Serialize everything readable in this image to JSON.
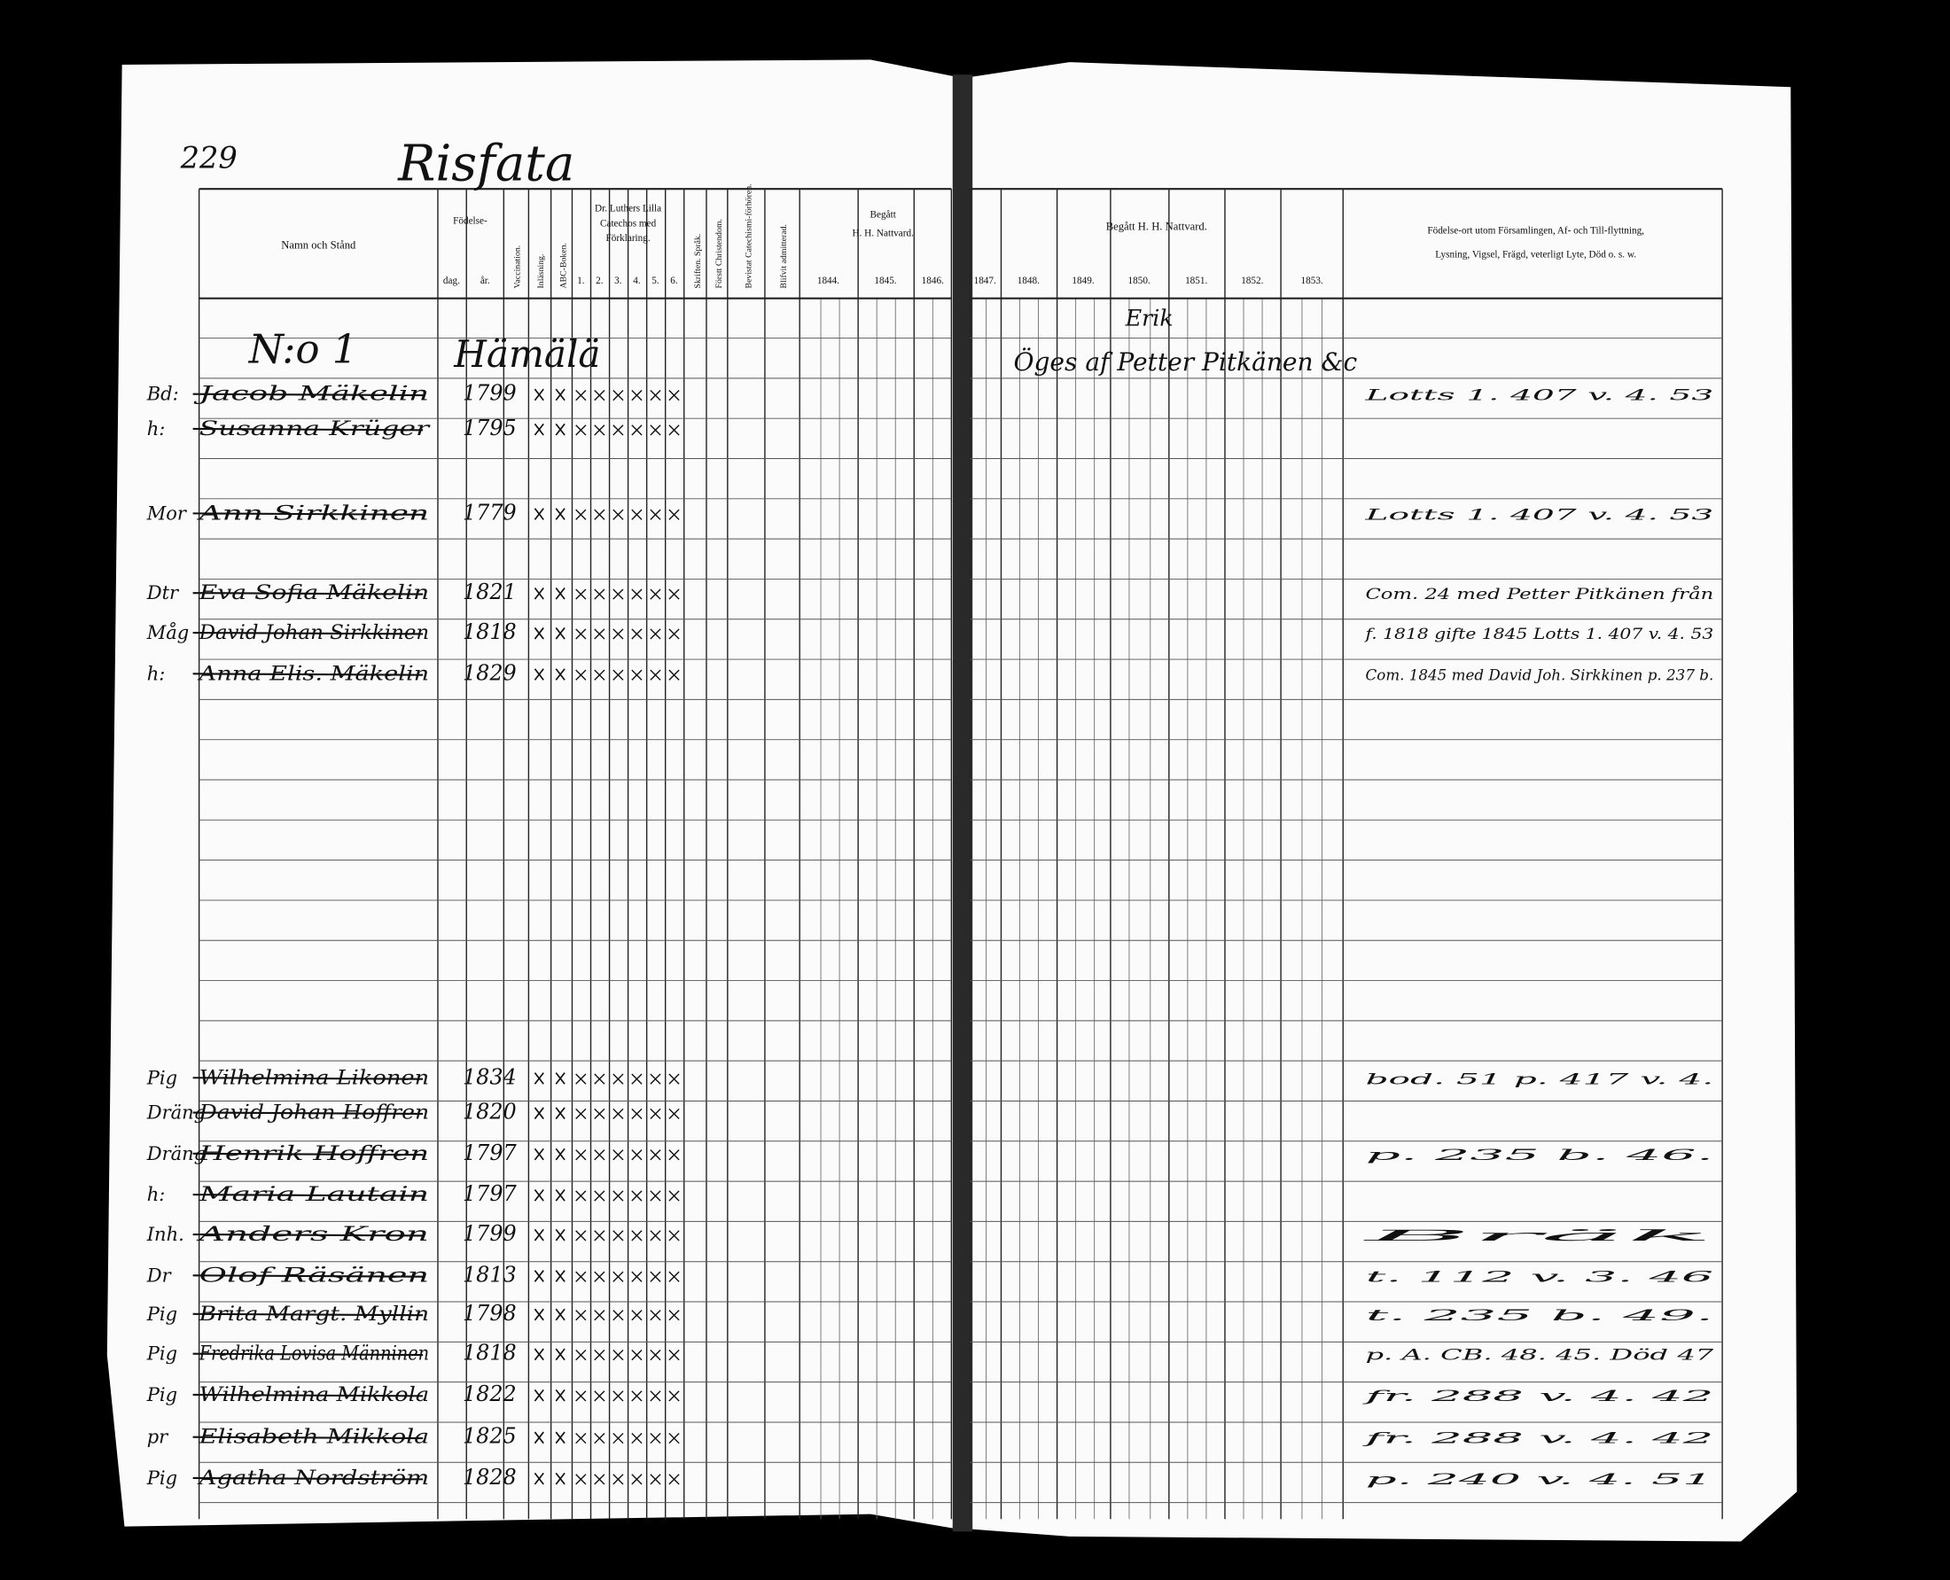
{
  "header": {
    "page_number": "229",
    "parish": "Risfata"
  },
  "columns": {
    "name": "Namn och Stånd",
    "birth": "Födelse-",
    "birth_day": "dag.",
    "birth_year": "år.",
    "vaccination": "Vaccination.",
    "reading": "Inläsning.",
    "abc": "ABC-Boken.",
    "catechism": [
      "Dr. Luthers Lilla",
      "Catechos med",
      "Förklaring."
    ],
    "catechism_parts": [
      "1.",
      "2.",
      "3.",
      "4.",
      "5.",
      "6."
    ],
    "scripture": "Skriften. Språk.",
    "christendom": "Förstt Christendom.",
    "catechism_hearings": "Bevistat Catechismi-förhören.",
    "admitted": "Blifvit admitterad.",
    "communion_left": [
      "Begått",
      "H. H. Nattvard."
    ],
    "years_left": [
      "1844.",
      "1845.",
      "1846."
    ],
    "communion_right": "Begått H. H. Nattvard.",
    "years_right": [
      "1847.",
      "1848.",
      "1849.",
      "1850.",
      "1851.",
      "1852.",
      "1853."
    ],
    "remarks": [
      "Födelse-ort utom Församlingen, Af- och Till-flyttning,",
      "Lysning, Vigsel, Frägd, veterligt Lyte, Död o. s. w."
    ]
  },
  "household": {
    "number": "N:o 1",
    "farm": "Hämälä",
    "owner_note": "Erik",
    "owner": "Öges af Petter Pitkänen &c"
  },
  "rows": [
    {
      "title": "Bd:",
      "name": "Jacob Mäkelin",
      "year": "1799",
      "note": "Lotts 1. 407 v. 4. 53"
    },
    {
      "title": "h:",
      "name": "Susanna Krüger",
      "year": "1795"
    },
    {
      "title": "Mor",
      "name": "Ann Sirkkinen",
      "year": "1779",
      "note": "Lotts 1. 407 v. 4. 53"
    },
    {
      "title": "Dtr",
      "name": "Eva Sofia Mäkelin",
      "year": "1821",
      "note": "Com. 24 med Petter Pitkänen från"
    },
    {
      "title": "Måg",
      "name": "David Johan Sirkkinen",
      "year": "1818",
      "note": "f. 1818 gifte 1845 Lotts 1. 407 v. 4. 53"
    },
    {
      "title": "h:",
      "name": "Anna Elis. Mäkelin",
      "year": "1829",
      "note": "Com. 1845 med David Joh. Sirkkinen p. 237 b."
    },
    {
      "title": "Pig",
      "name": "Wilhelmina Likonen",
      "year": "1834",
      "note": "bod. 51 p. 417 v. 4."
    },
    {
      "title": "Dräng",
      "name": "David Johan Hoffren",
      "year": "1820"
    },
    {
      "title": "Dräng",
      "name": "Henrik Hoffren",
      "year": "1797",
      "note": "p. 235 b. 46."
    },
    {
      "title": "h:",
      "name": "Maria Lautain",
      "year": "1797"
    },
    {
      "title": "Inh.",
      "name": "Anders Kron",
      "year": "1799",
      "note": "Bräk"
    },
    {
      "title": "Dr",
      "name": "Olof Räsänen",
      "year": "1813",
      "note": "t. 112 v. 3. 46"
    },
    {
      "title": "Pig",
      "name": "Brita Margt. Myllin",
      "year": "1798",
      "note": "t. 235 b. 49."
    },
    {
      "title": "Pig",
      "name": "Fredrika Lovisa Männinen",
      "year": "1818",
      "note": "p. A. CB. 48. 45. Död 47"
    },
    {
      "title": "Pig",
      "name": "Wilhelmina Mikkola",
      "year": "1822",
      "note": "fr. 288 v. 4. 42"
    },
    {
      "title": "pr",
      "name": "Elisabeth Mikkola",
      "year": "1825",
      "note": "fr. 288 v. 4. 42"
    },
    {
      "title": "Pig",
      "name": "Agatha Nordström",
      "year": "1828",
      "note": "p. 240 v. 4. 51"
    }
  ]
}
